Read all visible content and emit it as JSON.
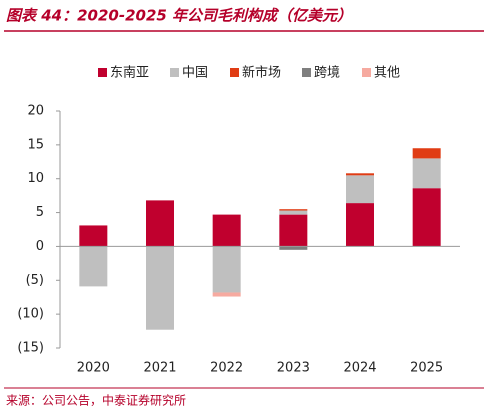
{
  "title": "图表 44：2020-2025 年公司毛利构成（亿美元）",
  "source": "来源：公司公告，中泰证券研究所",
  "chart_data": {
    "type": "stacked_bar",
    "categories": [
      "2020",
      "2021",
      "2022",
      "2023",
      "2024",
      "2025"
    ],
    "series": [
      {
        "name": "东南亚",
        "color": "#c0002e",
        "values": [
          3.1,
          6.8,
          4.7,
          4.7,
          6.4,
          8.6
        ]
      },
      {
        "name": "中国",
        "color": "#bfbfbf",
        "values": [
          -5.9,
          -12.3,
          -6.8,
          0.6,
          4.1,
          4.4
        ]
      },
      {
        "name": "新市场",
        "color": "#e03c14",
        "values": [
          null,
          null,
          null,
          0.2,
          0.3,
          1.5
        ]
      },
      {
        "name": "跨境",
        "color": "#7f7f7f",
        "values": [
          null,
          null,
          null,
          -0.5,
          null,
          null
        ]
      },
      {
        "name": "其他",
        "color": "#f6aaa0",
        "values": [
          null,
          null,
          -0.6,
          null,
          null,
          null
        ]
      }
    ],
    "ylim": [
      -15,
      20
    ],
    "yticks": [
      {
        "value": -15,
        "label": "(15)"
      },
      {
        "value": -10,
        "label": "(10)"
      },
      {
        "value": -5,
        "label": "(5)"
      },
      0,
      5,
      10,
      15,
      20
    ]
  }
}
